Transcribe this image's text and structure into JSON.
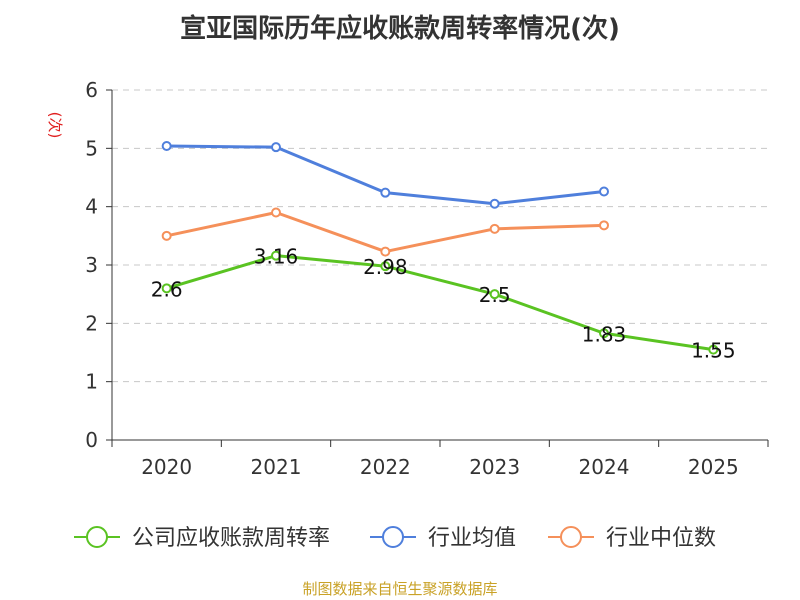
{
  "chart_data": {
    "type": "line",
    "title": "宣亚国际历年应收账款周转率情况(次)",
    "ylabel": "(次)",
    "xlabel": "",
    "categories": [
      "2020",
      "2021",
      "2022",
      "2023",
      "2024",
      "2025"
    ],
    "ylim": [
      0,
      6
    ],
    "yticks": [
      "0",
      "1",
      "2",
      "3",
      "4",
      "5",
      "6"
    ],
    "grid": true,
    "legend_position": "bottom",
    "series": [
      {
        "name": "公司应收账款周转率",
        "color": "#5ac322",
        "values": [
          2.6,
          3.16,
          2.98,
          2.5,
          1.83,
          1.55
        ],
        "labels": [
          "2.6",
          "3.16",
          "2.98",
          "2.5",
          "1.83",
          "1.55"
        ]
      },
      {
        "name": "行业均值",
        "color": "#4f7fdc",
        "values": [
          5.04,
          5.02,
          4.24,
          4.05,
          4.26,
          null
        ]
      },
      {
        "name": "行业中位数",
        "color": "#f5905a",
        "values": [
          3.5,
          3.9,
          3.23,
          3.62,
          3.68,
          null
        ]
      }
    ]
  },
  "source": "制图数据来自恒生聚源数据库"
}
